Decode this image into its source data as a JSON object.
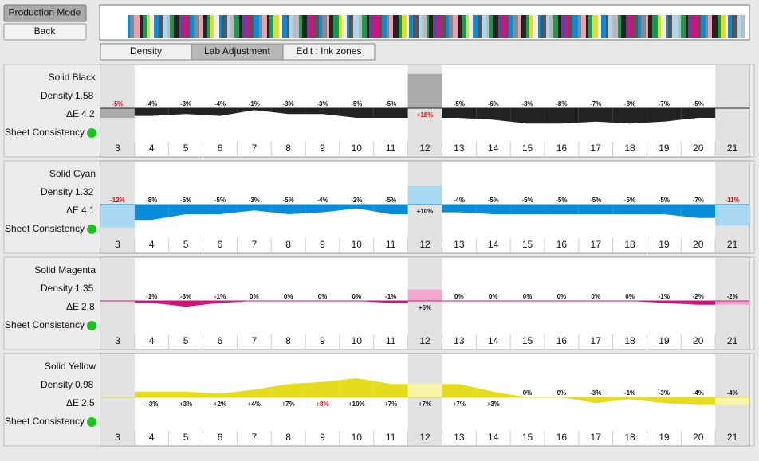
{
  "buttons": [
    "Production Mode",
    "Back"
  ],
  "tabs": [
    "Density",
    "Lab Adjustment",
    "Edit : Ink zones"
  ],
  "selected_tab": 1,
  "chart_data": [
    {
      "type": "area",
      "name": "Solid Black",
      "density_label": "Density",
      "density": 1.58,
      "delta_e_label": "ΔE",
      "delta_e": 4.2,
      "status_label": "Sheet Consistency",
      "status_color": "#1bc41b",
      "color": "#222222",
      "light_color": "#aaaaaa",
      "ylim": [
        -20,
        20
      ],
      "shaded": [
        0,
        9,
        18
      ],
      "categories": [
        3,
        4,
        5,
        6,
        7,
        8,
        9,
        10,
        11,
        12,
        13,
        14,
        15,
        16,
        17,
        18,
        19,
        20,
        21
      ],
      "values": [
        -5,
        -4,
        -3,
        -4,
        -1,
        -3,
        -3,
        -5,
        -5,
        18,
        -5,
        -6,
        -8,
        -8,
        -7,
        -8,
        -7,
        -5,
        null
      ],
      "value_labels": [
        "-5%",
        "-4%",
        "-3%",
        "-4%",
        "-1%",
        "-3%",
        "-3%",
        "-5%",
        "-5%",
        "+18%",
        "-5%",
        "-6%",
        "-8%",
        "-8%",
        "-7%",
        "-8%",
        "-7%",
        "-5%",
        null
      ],
      "alerts": [
        0,
        9
      ]
    },
    {
      "type": "area",
      "name": "Solid Cyan",
      "density_label": "Density",
      "density": 1.32,
      "delta_e_label": "ΔE",
      "delta_e": 4.1,
      "status_label": "Sheet Consistency",
      "status_color": "#1bc41b",
      "color": "#0a8bd8",
      "light_color": "#a8d8f2",
      "ylim": [
        -20,
        20
      ],
      "shaded": [
        0,
        9,
        18
      ],
      "categories": [
        3,
        4,
        5,
        6,
        7,
        8,
        9,
        10,
        11,
        12,
        13,
        14,
        15,
        16,
        17,
        18,
        19,
        20,
        21
      ],
      "values": [
        -12,
        -8,
        -5,
        -5,
        -3,
        -5,
        -4,
        -2,
        -5,
        10,
        -4,
        -5,
        -5,
        -5,
        -5,
        -5,
        -5,
        -7,
        -11
      ],
      "value_labels": [
        "-12%",
        "-8%",
        "-5%",
        "-5%",
        "-3%",
        "-5%",
        "-4%",
        "-2%",
        "-5%",
        "+10%",
        "-4%",
        "-5%",
        "-5%",
        "-5%",
        "-5%",
        "-5%",
        "-5%",
        "-7%",
        "-11%"
      ],
      "alerts": [
        0,
        18
      ]
    },
    {
      "type": "area",
      "name": "Solid Magenta",
      "density_label": "Density",
      "density": 1.35,
      "delta_e_label": "ΔE",
      "delta_e": 2.8,
      "status_label": "Sheet Consistency",
      "status_color": "#1bc41b",
      "color": "#d4137a",
      "light_color": "#f2a8cc",
      "ylim": [
        -20,
        20
      ],
      "shaded": [
        0,
        9,
        18
      ],
      "categories": [
        3,
        4,
        5,
        6,
        7,
        8,
        9,
        10,
        11,
        12,
        13,
        14,
        15,
        16,
        17,
        18,
        19,
        20,
        21
      ],
      "values": [
        null,
        -1,
        -3,
        -1,
        0,
        0,
        0,
        0,
        -1,
        6,
        0,
        0,
        0,
        0,
        0,
        0,
        -1,
        -2,
        -2
      ],
      "value_labels": [
        null,
        "-1%",
        "-3%",
        "-1%",
        "0%",
        "0%",
        "0%",
        "0%",
        "-1%",
        "+6%",
        "0%",
        "0%",
        "0%",
        "0%",
        "0%",
        "0%",
        "-1%",
        "-2%",
        "-2%"
      ],
      "alerts": []
    },
    {
      "type": "area",
      "name": "Solid Yellow",
      "density_label": "Density",
      "density": 0.98,
      "delta_e_label": "ΔE",
      "delta_e": 2.5,
      "status_label": "Sheet Consistency",
      "status_color": "#1bc41b",
      "color": "#e6dc1e",
      "light_color": "#f8f4a8",
      "ylim": [
        -20,
        20
      ],
      "shaded": [
        0,
        9,
        18
      ],
      "categories": [
        3,
        4,
        5,
        6,
        7,
        8,
        9,
        10,
        11,
        12,
        13,
        14,
        15,
        16,
        17,
        18,
        19,
        20,
        21
      ],
      "values": [
        null,
        3,
        3,
        2,
        4,
        7,
        8,
        10,
        7,
        7,
        7,
        3,
        0,
        0,
        -3,
        -1,
        -3,
        -4,
        -4
      ],
      "value_labels": [
        null,
        "+3%",
        "+3%",
        "+2%",
        "+4%",
        "+7%",
        "+8%",
        "+10%",
        "+7%",
        "+7%",
        "+7%",
        "+3%",
        "0%",
        "0%",
        "-3%",
        "-1%",
        "-3%",
        "-4%",
        "-4%"
      ],
      "alerts": [
        6
      ]
    }
  ]
}
